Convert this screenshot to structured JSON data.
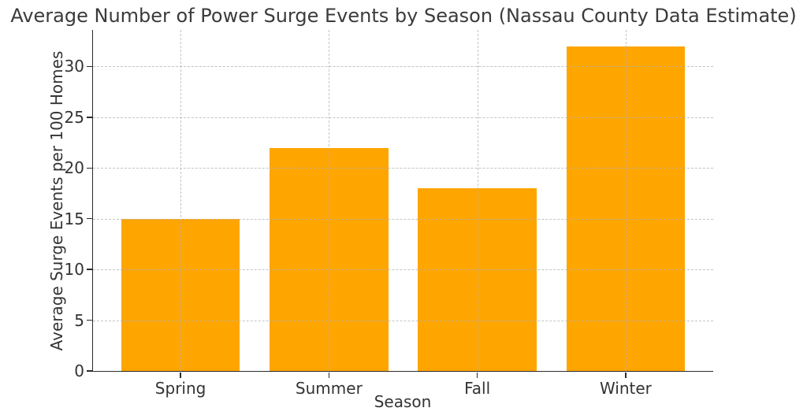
{
  "chart_data": {
    "type": "bar",
    "title": "Average Number of Power Surge Events by Season (Nassau County Data Estimate)",
    "xlabel": "Season",
    "ylabel": "Average Surge Events per 100 Homes",
    "categories": [
      "Spring",
      "Summer",
      "Fall",
      "Winter"
    ],
    "values": [
      15,
      22,
      18,
      32
    ],
    "yticks": [
      0,
      5,
      10,
      15,
      20,
      25,
      30
    ],
    "ylim": [
      0,
      33.6
    ],
    "bar_color": "#FFA500",
    "grid": "dashed",
    "grid_color": "#b0b0b0",
    "axis_color": "#2b2b2b",
    "text_color": "#333333",
    "legend": "none",
    "bar_width_units": 0.8,
    "x_margin_units": 0.59
  }
}
